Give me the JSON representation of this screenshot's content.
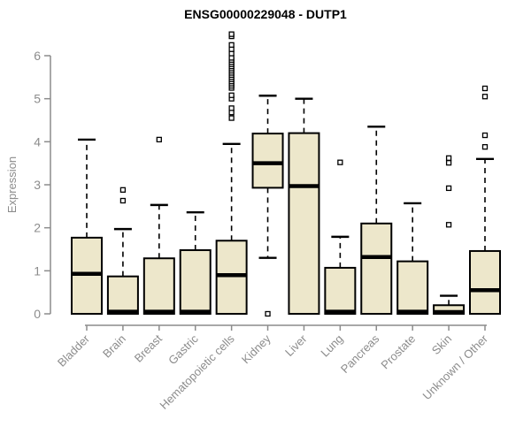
{
  "colors": {
    "background": "#ffffff",
    "box_fill": "#ede7cb",
    "box_border": "#000000",
    "median": "#000000",
    "whisker": "#000000",
    "outlier_stroke": "#000000",
    "outlier_fill": "#ffffff",
    "axis": "#8c8c8c",
    "axis_text": "#8c8c8c",
    "title_text": "#000000"
  },
  "chart_data": {
    "type": "boxplot",
    "title": "ENSG00000229048 - DUTP1",
    "xlabel": "",
    "ylabel": "Expression",
    "ylim": [
      0,
      6.55
    ],
    "yticks": [
      0,
      1,
      2,
      3,
      4,
      5,
      6
    ],
    "grid": false,
    "legend": false,
    "categories": [
      "Bladder",
      "Brain",
      "Breast",
      "Gastric",
      "Hematopoietic cells",
      "Kidney",
      "Liver",
      "Lung",
      "Pancreas",
      "Prostate",
      "Skin",
      "Unknown / Other"
    ],
    "boxes": [
      {
        "category": "Bladder",
        "whisker_low": 0,
        "q1": 0,
        "median": 0.93,
        "q3": 1.77,
        "whisker_high": 4.05,
        "outliers": []
      },
      {
        "category": "Brain",
        "whisker_low": 0,
        "q1": 0,
        "median": 0.05,
        "q3": 0.87,
        "whisker_high": 1.97,
        "outliers": [
          2.63,
          2.88
        ]
      },
      {
        "category": "Breast",
        "whisker_low": 0,
        "q1": 0,
        "median": 0.05,
        "q3": 1.29,
        "whisker_high": 2.53,
        "outliers": [
          4.05
        ]
      },
      {
        "category": "Gastric",
        "whisker_low": 0,
        "q1": 0,
        "median": 0.05,
        "q3": 1.48,
        "whisker_high": 2.36,
        "outliers": []
      },
      {
        "category": "Hematopoietic cells",
        "whisker_low": 0,
        "q1": 0,
        "median": 0.9,
        "q3": 1.7,
        "whisker_high": 3.95,
        "outliers": [
          4.55,
          4.68,
          4.78,
          5.0,
          5.08,
          5.25,
          5.3,
          5.35,
          5.4,
          5.45,
          5.5,
          5.55,
          5.6,
          5.65,
          5.7,
          5.75,
          5.8,
          5.85,
          5.9,
          5.95,
          6.05,
          6.15,
          6.25,
          6.45,
          6.5
        ]
      },
      {
        "category": "Kidney",
        "whisker_low": 1.3,
        "q1": 2.93,
        "median": 3.5,
        "q3": 4.19,
        "whisker_high": 5.07,
        "outliers": [
          0.0
        ]
      },
      {
        "category": "Liver",
        "whisker_low": 0,
        "q1": 0,
        "median": 2.97,
        "q3": 4.2,
        "whisker_high": 5.0,
        "outliers": []
      },
      {
        "category": "Lung",
        "whisker_low": 0,
        "q1": 0,
        "median": 0.05,
        "q3": 1.07,
        "whisker_high": 1.79,
        "outliers": [
          3.52
        ]
      },
      {
        "category": "Pancreas",
        "whisker_low": 0,
        "q1": 0,
        "median": 1.32,
        "q3": 2.1,
        "whisker_high": 4.35,
        "outliers": []
      },
      {
        "category": "Prostate",
        "whisker_low": 0,
        "q1": 0,
        "median": 0.05,
        "q3": 1.22,
        "whisker_high": 2.57,
        "outliers": []
      },
      {
        "category": "Skin",
        "whisker_low": 0,
        "q1": 0,
        "median": 0.04,
        "q3": 0.2,
        "whisker_high": 0.42,
        "outliers": [
          2.07,
          2.92,
          3.51,
          3.62
        ]
      },
      {
        "category": "Unknown / Other",
        "whisker_low": 0,
        "q1": 0,
        "median": 0.55,
        "q3": 1.46,
        "whisker_high": 3.6,
        "outliers": [
          3.88,
          4.15,
          5.05,
          5.24
        ]
      }
    ]
  }
}
